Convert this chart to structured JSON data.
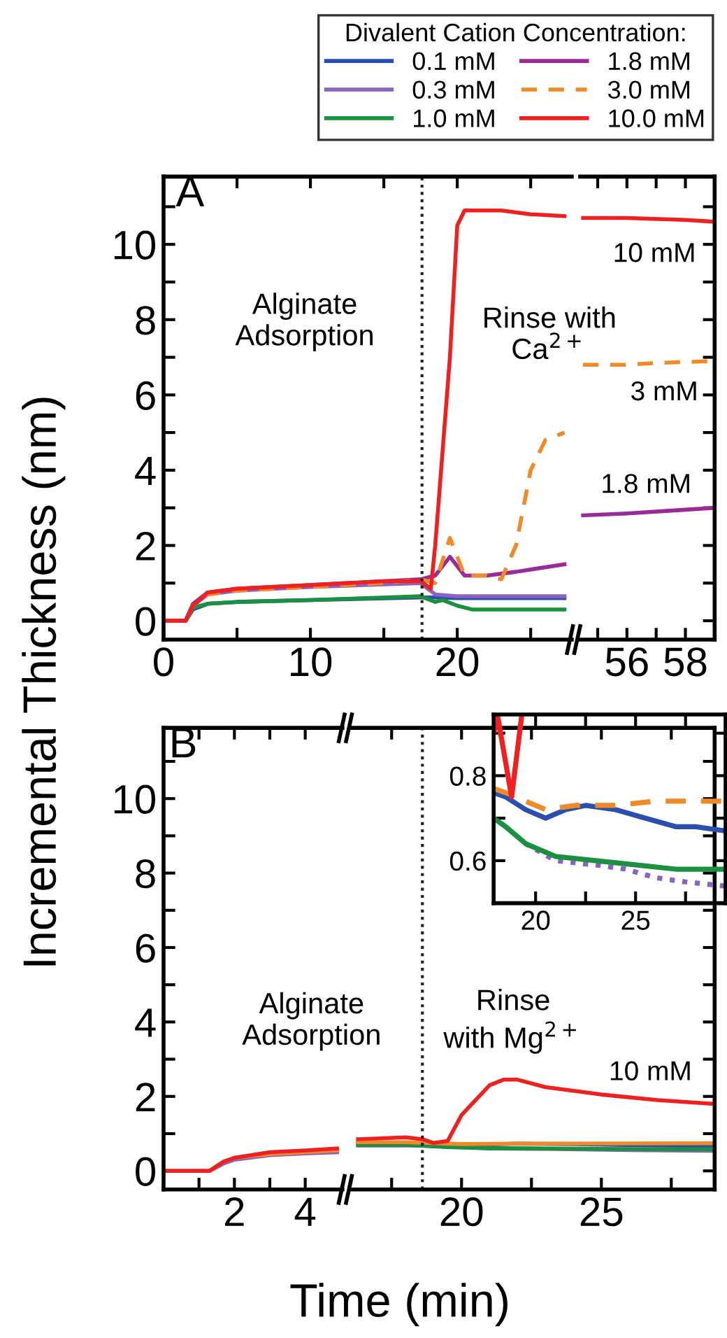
{
  "chart_data": [
    {
      "type": "line",
      "ylabel": "Incremental Thickness (nm)",
      "legend_title": "Divalent Cation Concentration:",
      "legend": "top right",
      "xlim": [
        0,
        27.8
      ],
      "ylim": [
        -0.5,
        11.8
      ],
      "xticks": [
        0,
        {
          "value": 5,
          "label": null
        },
        10,
        {
          "value": 15,
          "label": null
        },
        20,
        {
          "value": 25,
          "label": null
        }
      ],
      "yticks": [
        0,
        {
          "value": 1,
          "label": null
        },
        2,
        {
          "value": 3,
          "label": null
        },
        4,
        {
          "value": 5,
          "label": null
        },
        6,
        {
          "value": 7,
          "label": null
        },
        8,
        {
          "value": 9,
          "label": null
        },
        10,
        {
          "value": 11,
          "label": null
        }
      ],
      "ref_lines": [
        {
          "axis": "x",
          "value": 17.6,
          "color": "#222222",
          "line_style": "dotted"
        }
      ],
      "annotations": [
        "A",
        "Alginate\nAdsorption",
        "Rinse with\nCa$^{2+}$"
      ],
      "series": [
        {
          "name": "0.1 mM",
          "color": "#2a4fb0",
          "x": [
            0,
            1.5,
            2,
            3,
            5,
            10,
            17.5,
            18.5,
            20,
            22,
            27.3
          ],
          "values": [
            0,
            0,
            0.3,
            0.45,
            0.5,
            0.55,
            0.62,
            0.62,
            0.6,
            0.6,
            0.6
          ]
        },
        {
          "name": "0.3 mM",
          "color": "#8a62c0",
          "x": [
            0,
            1.5,
            2,
            3,
            5,
            10,
            17.5,
            18.5,
            20,
            22,
            27.3
          ],
          "values": [
            0,
            0,
            0.4,
            0.7,
            0.8,
            0.9,
            1.0,
            0.7,
            0.65,
            0.65,
            0.65
          ]
        },
        {
          "name": "1.0 mM",
          "color": "#1a9040",
          "x": [
            0,
            1.5,
            2,
            3,
            5,
            10,
            17.5,
            18.5,
            19,
            20,
            21,
            27.3
          ],
          "values": [
            0,
            0,
            0.35,
            0.45,
            0.5,
            0.55,
            0.65,
            0.5,
            0.55,
            0.4,
            0.3,
            0.3
          ]
        },
        {
          "name": "1.8 mM",
          "color": "#9a2a9a",
          "x": [
            0,
            1.5,
            2,
            3,
            5,
            10,
            17.5,
            18.5,
            19.5,
            20.5,
            22,
            24,
            27.3
          ],
          "values": [
            0,
            0,
            0.45,
            0.75,
            0.85,
            0.95,
            1.1,
            1.2,
            1.7,
            1.2,
            1.2,
            1.3,
            1.5
          ]
        },
        {
          "name": "3.0 mM",
          "color": "#f08a28",
          "line_style": "dashed",
          "x": [
            0,
            1.5,
            2,
            3,
            5,
            10,
            15,
            17.5,
            18.5,
            19.5,
            20.5,
            22,
            23,
            24,
            25,
            26,
            27.3
          ],
          "values": [
            0,
            0,
            0.4,
            0.7,
            0.8,
            0.9,
            1.0,
            1.1,
            1.0,
            2.2,
            1.2,
            1.2,
            1.1,
            2.0,
            4.0,
            4.8,
            5.0
          ]
        },
        {
          "name": "10.0 mM",
          "color": "#ee2020",
          "x": [
            0,
            1.5,
            2,
            3,
            5,
            10,
            15,
            17.5,
            18.2,
            18.5,
            19.5,
            20,
            20.5,
            23,
            25,
            27.3
          ],
          "values": [
            0,
            0,
            0.4,
            0.75,
            0.85,
            0.95,
            1.05,
            1.05,
            0.85,
            2.0,
            7.0,
            10.5,
            10.9,
            10.9,
            10.8,
            10.75
          ]
        }
      ]
    },
    {
      "type": "line",
      "tick_labels": "x",
      "xlim": [
        54.4,
        59
      ],
      "ylim": [
        -0.5,
        11.8
      ],
      "xticks": [
        {
          "value": 55,
          "label": null
        },
        56,
        {
          "value": 57,
          "label": null
        },
        58
      ],
      "yticks": [
        0,
        {
          "value": 1,
          "label": null
        },
        2,
        {
          "value": 3,
          "label": null
        },
        4,
        {
          "value": 5,
          "label": null
        },
        6,
        {
          "value": 7,
          "label": null
        },
        8,
        {
          "value": 9,
          "label": null
        },
        10,
        {
          "value": 11,
          "label": null
        }
      ],
      "annotations": [
        "10 mM",
        "3 mM",
        "1.8 mM"
      ],
      "series": [
        {
          "color": "#9a2a9a",
          "x": [
            54.5,
            56,
            58,
            59
          ],
          "values": [
            2.8,
            2.85,
            2.95,
            3.0
          ]
        },
        {
          "color": "#f08a28",
          "line_style": "dashed",
          "x": [
            54.5,
            56,
            57,
            59
          ],
          "values": [
            6.8,
            6.8,
            6.85,
            6.9
          ]
        },
        {
          "color": "#ee2020",
          "x": [
            54.5,
            56,
            58,
            59
          ],
          "values": [
            10.7,
            10.7,
            10.65,
            10.6
          ]
        }
      ]
    },
    {
      "type": "line",
      "xlabel": "Time (min)",
      "xlim": [
        0,
        5.05
      ],
      "ylim": [
        -0.5,
        11.9
      ],
      "xticks": [
        {
          "value": 1,
          "label": null
        },
        2,
        {
          "value": 3,
          "label": null
        },
        4
      ],
      "yticks": [
        0,
        {
          "value": 1,
          "label": null
        },
        2,
        {
          "value": 3,
          "label": null
        },
        4,
        {
          "value": 5,
          "label": null
        },
        6,
        {
          "value": 7,
          "label": null
        },
        8,
        {
          "value": 9,
          "label": null
        },
        10,
        {
          "value": 11,
          "label": null
        }
      ],
      "annotations": [
        "B",
        "Alginate\nAdsorption"
      ],
      "series": [
        {
          "color": "#8a62c0",
          "x": [
            0,
            1.3,
            1.7,
            2,
            3,
            4,
            4.9
          ],
          "values": [
            0,
            0,
            0.2,
            0.3,
            0.42,
            0.47,
            0.5
          ]
        },
        {
          "color": "#f08a28",
          "x": [
            0,
            1.3,
            1.7,
            2,
            3,
            4,
            4.9
          ],
          "values": [
            0,
            0,
            0.25,
            0.35,
            0.45,
            0.5,
            0.55
          ]
        },
        {
          "color": "#ee2020",
          "x": [
            0,
            1.3,
            1.7,
            2,
            3,
            4,
            4.9
          ],
          "values": [
            0,
            0,
            0.25,
            0.35,
            0.5,
            0.55,
            0.6
          ]
        }
      ]
    },
    {
      "type": "line",
      "tick_labels": "x",
      "xlim": [
        16,
        29.05
      ],
      "ylim": [
        -0.5,
        11.9
      ],
      "xticks": [
        {
          "value": 17.5,
          "label": null
        },
        20,
        {
          "value": 22.5,
          "label": null
        },
        25,
        {
          "value": 27.5,
          "label": null
        }
      ],
      "yticks": [
        0,
        {
          "value": 1,
          "label": null
        },
        2,
        {
          "value": 3,
          "label": null
        },
        4,
        {
          "value": 5,
          "label": null
        },
        6,
        {
          "value": 7,
          "label": null
        },
        8,
        {
          "value": 9,
          "label": null
        },
        10,
        {
          "value": 11,
          "label": null
        }
      ],
      "ref_lines": [
        {
          "axis": "x",
          "value": 18.6,
          "color": "#222222",
          "line_style": "dotted"
        }
      ],
      "annotations": [
        "Rinse\nwith Mg$^{2+}$",
        "10 mM"
      ],
      "series": [
        {
          "color": "#2a4fb0",
          "x": [
            16.3,
            18,
            20.5,
            22,
            24,
            27,
            29
          ],
          "values": [
            0.75,
            0.76,
            0.7,
            0.73,
            0.72,
            0.68,
            0.67
          ]
        },
        {
          "color": "#8a62c0",
          "x": [
            16.3,
            18.5,
            21,
            23,
            26,
            29
          ],
          "values": [
            0.68,
            0.68,
            0.6,
            0.59,
            0.56,
            0.54
          ]
        },
        {
          "color": "#1a9040",
          "x": [
            16.3,
            18,
            19.5,
            21,
            23,
            27,
            29
          ],
          "values": [
            0.7,
            0.7,
            0.64,
            0.61,
            0.6,
            0.58,
            0.58
          ]
        },
        {
          "color": "#f08a28",
          "x": [
            16.3,
            18,
            20,
            22,
            29
          ],
          "values": [
            0.77,
            0.77,
            0.72,
            0.73,
            0.74
          ]
        },
        {
          "color": "#ee2020",
          "x": [
            16.3,
            18,
            18.6,
            19,
            19.5,
            20,
            21,
            21.5,
            22,
            23,
            25,
            27,
            29
          ],
          "values": [
            0.85,
            0.9,
            0.85,
            0.75,
            0.8,
            1.5,
            2.3,
            2.45,
            2.45,
            2.25,
            2.05,
            1.9,
            1.8
          ]
        }
      ]
    },
    {
      "type": "line",
      "xlim": [
        17.9,
        29.5
      ],
      "ylim": [
        0.5,
        0.944
      ],
      "xticks": [
        20,
        {
          "value": 22.5,
          "label": null
        },
        25,
        {
          "value": 27.5,
          "label": null
        }
      ],
      "yticks": [
        0.6,
        {
          "value": 0.7,
          "label": null
        },
        0.8,
        {
          "value": 0.9,
          "label": null
        }
      ],
      "series": [
        {
          "color": "#2a4fb0",
          "x": [
            17.9,
            18.5,
            19.5,
            20.5,
            21.5,
            22.5,
            24,
            25.5,
            27,
            28,
            29.5
          ],
          "values": [
            0.76,
            0.75,
            0.72,
            0.7,
            0.72,
            0.73,
            0.72,
            0.7,
            0.68,
            0.68,
            0.67
          ]
        },
        {
          "color": "#8a62c0",
          "line_style": "dotted",
          "x": [
            18.5,
            19.5,
            21,
            23,
            24.5,
            26,
            27.5,
            29.5
          ],
          "values": [
            0.68,
            0.64,
            0.6,
            0.59,
            0.58,
            0.56,
            0.55,
            0.54
          ]
        },
        {
          "color": "#1a9040",
          "x": [
            17.9,
            18.5,
            19.5,
            21,
            23,
            25,
            27,
            28,
            29.5
          ],
          "values": [
            0.7,
            0.68,
            0.64,
            0.61,
            0.6,
            0.59,
            0.58,
            0.58,
            0.58
          ]
        },
        {
          "color": "#f08a28",
          "line_style": "dashed",
          "x": [
            17.9,
            18.5,
            19.5,
            20.5,
            22,
            24,
            26,
            28,
            29.5
          ],
          "values": [
            0.77,
            0.76,
            0.74,
            0.72,
            0.73,
            0.73,
            0.74,
            0.74,
            0.74
          ]
        },
        {
          "color": "#ee2020",
          "x": [
            17.9,
            18.1,
            18.8,
            19.3
          ],
          "values": [
            0.9,
            0.94,
            0.75,
            0.94
          ]
        }
      ]
    }
  ]
}
